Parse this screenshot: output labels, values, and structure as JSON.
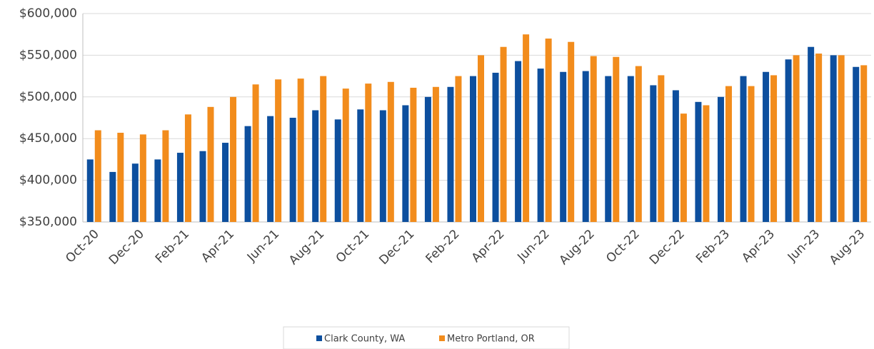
{
  "chart_data": {
    "type": "bar",
    "categories": [
      "Oct-20",
      null,
      "Dec-20",
      null,
      "Feb-21",
      null,
      "Apr-21",
      null,
      "Jun-21",
      null,
      "Aug-21",
      null,
      "Oct-21",
      null,
      "Dec-21",
      null,
      "Feb-22",
      null,
      "Apr-22",
      null,
      "Jun-22",
      null,
      "Aug-22",
      null,
      "Oct-22",
      null,
      "Dec-22",
      null,
      "Feb-23",
      null,
      "Apr-23",
      null,
      "Jun-23",
      null,
      "Aug-23"
    ],
    "series": [
      {
        "name": "Clark County, WA",
        "color": "#0d4f9e",
        "values": [
          425000,
          410000,
          420000,
          425000,
          433000,
          435000,
          445000,
          465000,
          477000,
          475000,
          484000,
          473000,
          485000,
          484000,
          490000,
          500000,
          512000,
          525000,
          529000,
          543000,
          534000,
          530000,
          531000,
          525000,
          525000,
          514000,
          508000,
          494000,
          500000,
          525000,
          530000,
          545000,
          560000,
          550000,
          536000
        ]
      },
      {
        "name": "Metro Portland, OR",
        "color": "#f28c1c",
        "values": [
          460000,
          457000,
          455000,
          460000,
          479000,
          488000,
          500000,
          515000,
          521000,
          522000,
          525000,
          510000,
          516000,
          518000,
          511000,
          512000,
          525000,
          550000,
          560000,
          575000,
          570000,
          566000,
          549000,
          548000,
          537000,
          526000,
          480000,
          490000,
          513000,
          513000,
          526000,
          550000,
          552000,
          550000,
          538000
        ]
      }
    ],
    "ylim": [
      350000,
      600000
    ],
    "yticks": [
      {
        "value": 350000,
        "label": "$350,000"
      },
      {
        "value": 400000,
        "label": "$400,000"
      },
      {
        "value": 450000,
        "label": "$450,000"
      },
      {
        "value": 500000,
        "label": "$500,000"
      },
      {
        "value": 550000,
        "label": "$550,000"
      },
      {
        "value": 600000,
        "label": "$600,000"
      }
    ],
    "grid": true,
    "legend": "bottom"
  }
}
